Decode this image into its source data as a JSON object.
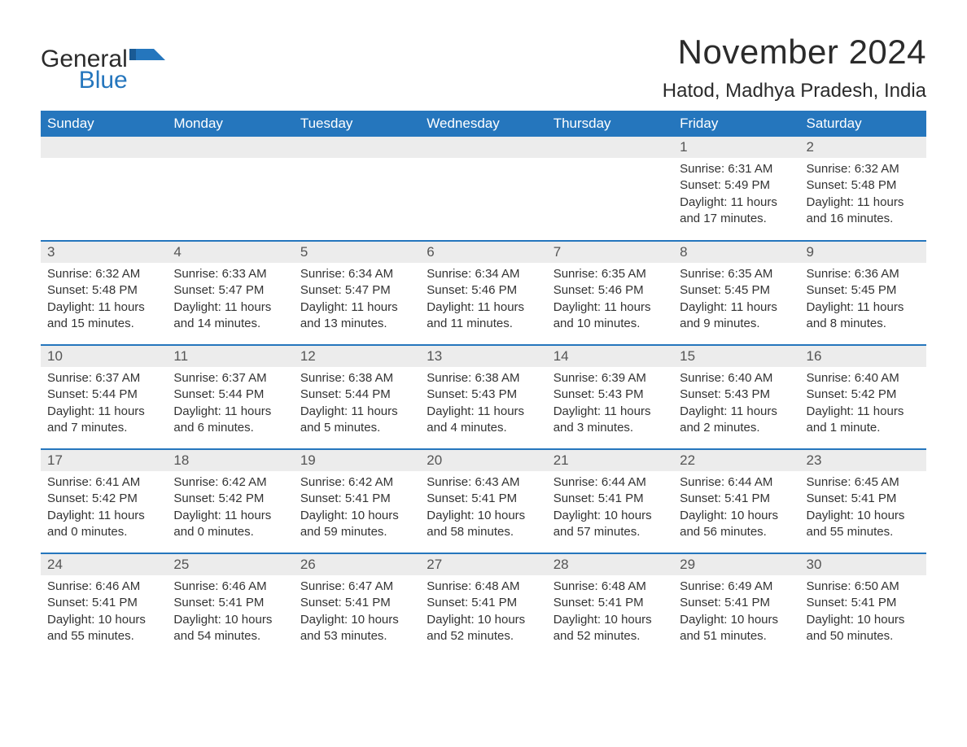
{
  "logo": {
    "word1": "General",
    "word2": "Blue"
  },
  "title": "November 2024",
  "location": "Hatod, Madhya Pradesh, India",
  "colors": {
    "header_bg": "#2576bd",
    "header_text": "#ffffff",
    "daynum_bg": "#ececec",
    "daynum_text": "#555555",
    "body_text": "#333333",
    "rule": "#2576bd",
    "page_bg": "#ffffff",
    "logo_blue": "#2576bd"
  },
  "typography": {
    "title_fontsize": 42,
    "location_fontsize": 24,
    "header_fontsize": 17,
    "daynum_fontsize": 17,
    "body_fontsize": 15,
    "font_family": "Arial"
  },
  "layout": {
    "columns": 7,
    "rows": 5,
    "start_weekday": "Sunday",
    "first_day_column_index": 5
  },
  "weekdays": [
    "Sunday",
    "Monday",
    "Tuesday",
    "Wednesday",
    "Thursday",
    "Friday",
    "Saturday"
  ],
  "labels": {
    "sunrise": "Sunrise",
    "sunset": "Sunset",
    "daylight": "Daylight"
  },
  "days": [
    {
      "n": 1,
      "sunrise": "6:31 AM",
      "sunset": "5:49 PM",
      "daylight": "11 hours and 17 minutes."
    },
    {
      "n": 2,
      "sunrise": "6:32 AM",
      "sunset": "5:48 PM",
      "daylight": "11 hours and 16 minutes."
    },
    {
      "n": 3,
      "sunrise": "6:32 AM",
      "sunset": "5:48 PM",
      "daylight": "11 hours and 15 minutes."
    },
    {
      "n": 4,
      "sunrise": "6:33 AM",
      "sunset": "5:47 PM",
      "daylight": "11 hours and 14 minutes."
    },
    {
      "n": 5,
      "sunrise": "6:34 AM",
      "sunset": "5:47 PM",
      "daylight": "11 hours and 13 minutes."
    },
    {
      "n": 6,
      "sunrise": "6:34 AM",
      "sunset": "5:46 PM",
      "daylight": "11 hours and 11 minutes."
    },
    {
      "n": 7,
      "sunrise": "6:35 AM",
      "sunset": "5:46 PM",
      "daylight": "11 hours and 10 minutes."
    },
    {
      "n": 8,
      "sunrise": "6:35 AM",
      "sunset": "5:45 PM",
      "daylight": "11 hours and 9 minutes."
    },
    {
      "n": 9,
      "sunrise": "6:36 AM",
      "sunset": "5:45 PM",
      "daylight": "11 hours and 8 minutes."
    },
    {
      "n": 10,
      "sunrise": "6:37 AM",
      "sunset": "5:44 PM",
      "daylight": "11 hours and 7 minutes."
    },
    {
      "n": 11,
      "sunrise": "6:37 AM",
      "sunset": "5:44 PM",
      "daylight": "11 hours and 6 minutes."
    },
    {
      "n": 12,
      "sunrise": "6:38 AM",
      "sunset": "5:44 PM",
      "daylight": "11 hours and 5 minutes."
    },
    {
      "n": 13,
      "sunrise": "6:38 AM",
      "sunset": "5:43 PM",
      "daylight": "11 hours and 4 minutes."
    },
    {
      "n": 14,
      "sunrise": "6:39 AM",
      "sunset": "5:43 PM",
      "daylight": "11 hours and 3 minutes."
    },
    {
      "n": 15,
      "sunrise": "6:40 AM",
      "sunset": "5:43 PM",
      "daylight": "11 hours and 2 minutes."
    },
    {
      "n": 16,
      "sunrise": "6:40 AM",
      "sunset": "5:42 PM",
      "daylight": "11 hours and 1 minute."
    },
    {
      "n": 17,
      "sunrise": "6:41 AM",
      "sunset": "5:42 PM",
      "daylight": "11 hours and 0 minutes."
    },
    {
      "n": 18,
      "sunrise": "6:42 AM",
      "sunset": "5:42 PM",
      "daylight": "11 hours and 0 minutes."
    },
    {
      "n": 19,
      "sunrise": "6:42 AM",
      "sunset": "5:41 PM",
      "daylight": "10 hours and 59 minutes."
    },
    {
      "n": 20,
      "sunrise": "6:43 AM",
      "sunset": "5:41 PM",
      "daylight": "10 hours and 58 minutes."
    },
    {
      "n": 21,
      "sunrise": "6:44 AM",
      "sunset": "5:41 PM",
      "daylight": "10 hours and 57 minutes."
    },
    {
      "n": 22,
      "sunrise": "6:44 AM",
      "sunset": "5:41 PM",
      "daylight": "10 hours and 56 minutes."
    },
    {
      "n": 23,
      "sunrise": "6:45 AM",
      "sunset": "5:41 PM",
      "daylight": "10 hours and 55 minutes."
    },
    {
      "n": 24,
      "sunrise": "6:46 AM",
      "sunset": "5:41 PM",
      "daylight": "10 hours and 55 minutes."
    },
    {
      "n": 25,
      "sunrise": "6:46 AM",
      "sunset": "5:41 PM",
      "daylight": "10 hours and 54 minutes."
    },
    {
      "n": 26,
      "sunrise": "6:47 AM",
      "sunset": "5:41 PM",
      "daylight": "10 hours and 53 minutes."
    },
    {
      "n": 27,
      "sunrise": "6:48 AM",
      "sunset": "5:41 PM",
      "daylight": "10 hours and 52 minutes."
    },
    {
      "n": 28,
      "sunrise": "6:48 AM",
      "sunset": "5:41 PM",
      "daylight": "10 hours and 52 minutes."
    },
    {
      "n": 29,
      "sunrise": "6:49 AM",
      "sunset": "5:41 PM",
      "daylight": "10 hours and 51 minutes."
    },
    {
      "n": 30,
      "sunrise": "6:50 AM",
      "sunset": "5:41 PM",
      "daylight": "10 hours and 50 minutes."
    }
  ]
}
